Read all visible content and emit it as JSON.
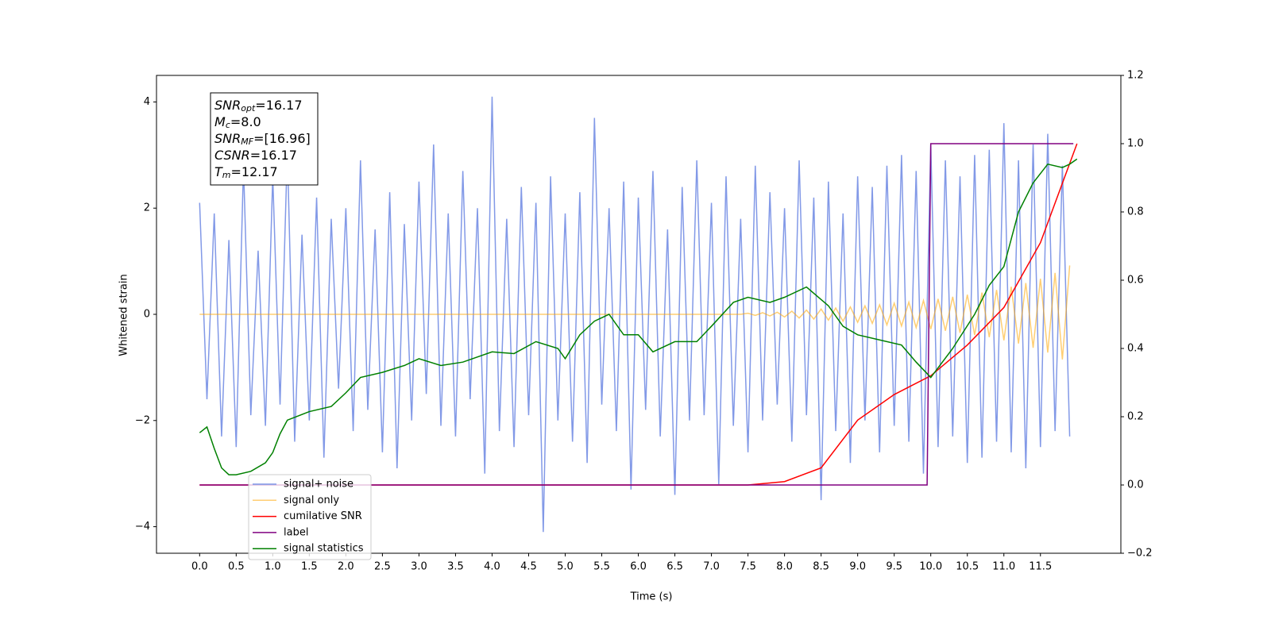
{
  "chart_data": {
    "type": "line",
    "x_label": "Time (s)",
    "y_label": "Whitened strain",
    "xlim": [
      -0.59,
      12.6
    ],
    "ylim": [
      -4.5,
      4.5
    ],
    "y2lim": [
      -0.2,
      1.2
    ],
    "xticks": [
      {
        "value": 0,
        "label": "0.0"
      },
      0.5,
      {
        "value": 1,
        "label": "1.0"
      },
      1.5,
      {
        "value": 2,
        "label": "2.0"
      },
      2.5,
      {
        "value": 3,
        "label": "3.0"
      },
      3.5,
      {
        "value": 4,
        "label": "4.0"
      },
      4.5,
      {
        "value": 5,
        "label": "5.0"
      },
      5.5,
      {
        "value": 6,
        "label": "6.0"
      },
      6.5,
      {
        "value": 7,
        "label": "7.0"
      },
      7.5,
      {
        "value": 8,
        "label": "8.0"
      },
      8.5,
      {
        "value": 9,
        "label": "9.0"
      },
      9.5,
      {
        "value": 10,
        "label": "10.0"
      },
      10.5,
      {
        "value": 11,
        "label": "11.0"
      },
      11.5
    ],
    "yticks": [
      {
        "value": -4,
        "label": "−4"
      },
      {
        "value": -2,
        "label": "−2"
      },
      0,
      2,
      4
    ],
    "y2ticks": [
      {
        "value": -0.2,
        "label": "−0.2"
      },
      {
        "value": 0,
        "label": "0.0"
      },
      0.2,
      0.4,
      0.6,
      0.8,
      {
        "value": 1,
        "label": "1.0"
      },
      1.2
    ],
    "legend": "lower left",
    "annotation": [
      {
        "name": "SNR",
        "sub": "opt",
        "text": "=16.17"
      },
      {
        "name": "M",
        "sub": "c",
        "text": "=8.0"
      },
      {
        "name": "SNR",
        "sub": "MF",
        "text": "=[16.96]"
      },
      {
        "name": "CSNR",
        "sub": "",
        "text": "=16.17"
      },
      {
        "name": "T",
        "sub": "m",
        "text": "=12.17"
      }
    ],
    "x": [
      0.0,
      0.1,
      0.2,
      0.3,
      0.4,
      0.5,
      0.6,
      0.7,
      0.8,
      0.9,
      1.0,
      1.1,
      1.2,
      1.3,
      1.4,
      1.5,
      1.6,
      1.7,
      1.8,
      1.9,
      2.0,
      2.1,
      2.2,
      2.3,
      2.4,
      2.5,
      2.6,
      2.7,
      2.8,
      2.9,
      3.0,
      3.1,
      3.2,
      3.3,
      3.4,
      3.5,
      3.6,
      3.7,
      3.8,
      3.9,
      4.0,
      4.1,
      4.2,
      4.3,
      4.4,
      4.5,
      4.6,
      4.7,
      4.8,
      4.9,
      5.0,
      5.1,
      5.2,
      5.3,
      5.4,
      5.5,
      5.6,
      5.7,
      5.8,
      5.9,
      6.0,
      6.1,
      6.2,
      6.3,
      6.4,
      6.5,
      6.6,
      6.7,
      6.8,
      6.9,
      7.0,
      7.1,
      7.2,
      7.3,
      7.4,
      7.5,
      7.6,
      7.7,
      7.8,
      7.9,
      8.0,
      8.1,
      8.2,
      8.3,
      8.4,
      8.5,
      8.6,
      8.7,
      8.8,
      8.9,
      9.0,
      9.1,
      9.2,
      9.3,
      9.4,
      9.5,
      9.6,
      9.7,
      9.8,
      9.9,
      10.0,
      10.1,
      10.2,
      10.3,
      10.4,
      10.5,
      10.6,
      10.7,
      10.8,
      10.9,
      11.0,
      11.1,
      11.2,
      11.3,
      11.4,
      11.5,
      11.6,
      11.7,
      11.8,
      11.9
    ],
    "series": [
      {
        "name": "signal+ noise",
        "color": "#7b93e6",
        "values": [
          2.1,
          -1.6,
          1.9,
          -2.3,
          1.4,
          -2.5,
          2.8,
          -1.9,
          1.2,
          -2.1,
          2.6,
          -1.7,
          3.1,
          -2.4,
          1.5,
          -2.0,
          2.2,
          -2.7,
          1.8,
          -1.4,
          2.0,
          -2.2,
          2.9,
          -1.8,
          1.6,
          -2.6,
          2.3,
          -2.9,
          1.7,
          -2.0,
          2.5,
          -1.5,
          3.2,
          -2.1,
          1.9,
          -2.3,
          2.7,
          -1.6,
          2.0,
          -3.0,
          4.1,
          -2.2,
          1.8,
          -2.5,
          2.4,
          -1.9,
          2.1,
          -4.1,
          2.6,
          -2.0,
          1.9,
          -2.4,
          2.3,
          -2.8,
          3.7,
          -1.7,
          2.0,
          -2.2,
          2.5,
          -3.3,
          2.2,
          -1.8,
          2.7,
          -2.3,
          1.6,
          -3.4,
          2.4,
          -2.0,
          2.9,
          -1.9,
          2.1,
          -3.2,
          2.6,
          -2.1,
          1.8,
          -2.6,
          2.8,
          -2.0,
          2.3,
          -1.7,
          2.0,
          -2.4,
          2.9,
          -1.9,
          2.2,
          -3.5,
          2.5,
          -2.2,
          1.9,
          -2.8,
          2.6,
          -2.0,
          2.4,
          -2.6,
          2.8,
          -2.1,
          3.0,
          -2.4,
          2.7,
          -3.0,
          3.2,
          -2.5,
          2.9,
          -2.3,
          2.6,
          -2.8,
          3.0,
          -2.7,
          3.1,
          -2.4,
          3.6,
          -2.6,
          2.9,
          -2.9,
          3.2,
          -2.5,
          3.4,
          -2.2,
          2.8,
          -2.3
        ]
      },
      {
        "name": "signal only",
        "color": "#ffa500",
        "values": [
          0,
          0,
          0,
          0,
          0,
          0,
          0,
          0,
          0,
          0,
          0,
          0,
          0,
          0,
          0,
          0,
          0,
          0,
          0,
          0,
          0,
          0,
          0,
          0,
          0,
          0,
          0,
          0,
          0,
          0,
          0,
          0,
          0,
          0,
          0,
          0,
          0,
          0,
          0,
          0,
          0,
          0,
          0,
          0,
          0,
          0,
          0,
          0,
          0,
          0,
          0,
          0,
          0,
          0,
          0,
          0,
          0,
          0,
          0,
          0,
          0,
          0,
          0,
          0,
          0,
          0,
          0,
          0,
          0,
          0,
          0,
          0,
          0,
          0,
          0,
          0.02,
          -0.02,
          0.03,
          -0.03,
          0.04,
          -0.05,
          0.06,
          -0.07,
          0.08,
          -0.09,
          0.1,
          -0.11,
          0.12,
          -0.13,
          0.14,
          -0.15,
          0.16,
          -0.17,
          0.18,
          -0.2,
          0.21,
          -0.22,
          0.23,
          -0.25,
          0.26,
          -0.28,
          0.29,
          -0.31,
          0.33,
          -0.35,
          0.37,
          -0.39,
          0.41,
          -0.43,
          0.46,
          -0.49,
          0.52,
          -0.55,
          0.59,
          -0.63,
          0.67,
          -0.72,
          0.78,
          -0.85,
          0.92
        ]
      },
      {
        "name": "cumilative SNR",
        "color": "#ff0000",
        "axis": "y2",
        "x": [
          0,
          7.5,
          8,
          8.5,
          9,
          9.5,
          10,
          10.5,
          11,
          11.5,
          12
        ],
        "values": [
          0,
          0,
          0.01,
          0.05,
          0.19,
          0.265,
          0.32,
          0.41,
          0.52,
          0.71,
          1.0
        ]
      },
      {
        "name": "label",
        "color": "#800080",
        "axis": "y2",
        "x": [
          0,
          9.95,
          10.0,
          11.95
        ],
        "values": [
          0,
          0,
          1,
          1
        ]
      },
      {
        "name": "signal statistics",
        "color": "#008000",
        "axis": "y2",
        "x": [
          0,
          0.1,
          0.2,
          0.3,
          0.4,
          0.5,
          0.7,
          0.9,
          1.0,
          1.1,
          1.2,
          1.5,
          1.8,
          2.0,
          2.2,
          2.5,
          2.8,
          3.0,
          3.3,
          3.6,
          4.0,
          4.3,
          4.6,
          4.9,
          5.0,
          5.2,
          5.4,
          5.6,
          5.8,
          6.0,
          6.2,
          6.5,
          6.8,
          7.0,
          7.3,
          7.5,
          7.8,
          8.0,
          8.3,
          8.6,
          8.8,
          9.0,
          9.3,
          9.6,
          9.8,
          10.0,
          10.3,
          10.6,
          10.8,
          11.0,
          11.2,
          11.4,
          11.6,
          11.8,
          11.9,
          12.0
        ],
        "values": [
          0.153,
          0.17,
          0.107,
          0.05,
          0.03,
          0.03,
          0.04,
          0.065,
          0.095,
          0.15,
          0.19,
          0.215,
          0.23,
          0.27,
          0.315,
          0.33,
          0.35,
          0.37,
          0.35,
          0.36,
          0.39,
          0.385,
          0.42,
          0.4,
          0.37,
          0.44,
          0.48,
          0.5,
          0.44,
          0.44,
          0.39,
          0.42,
          0.42,
          0.465,
          0.535,
          0.55,
          0.535,
          0.55,
          0.58,
          0.525,
          0.465,
          0.44,
          0.425,
          0.41,
          0.36,
          0.315,
          0.4,
          0.5,
          0.585,
          0.64,
          0.8,
          0.885,
          0.94,
          0.93,
          0.94,
          0.955
        ]
      }
    ]
  }
}
